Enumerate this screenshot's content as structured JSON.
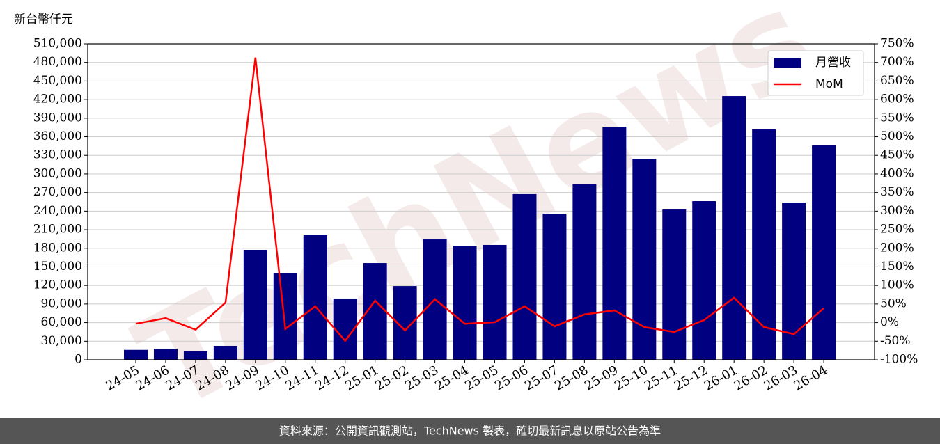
{
  "chart_data": {
    "type": "bar",
    "unit_label": "新台幣仟元",
    "watermark": "TechNews",
    "categories": [
      "24-05",
      "24-06",
      "24-07",
      "24-08",
      "24-09",
      "24-10",
      "24-11",
      "24-12",
      "25-01",
      "25-02",
      "25-03",
      "25-04",
      "25-05",
      "25-06",
      "25-07",
      "25-08",
      "25-09",
      "25-10",
      "25-11",
      "25-12",
      "26-01",
      "26-02",
      "26-03",
      "26-04"
    ],
    "series": [
      {
        "name": "月營收",
        "type": "bar",
        "color": "#000080",
        "values": [
          16000,
          18000,
          13500,
          22500,
          177500,
          140400,
          202200,
          98900,
          156100,
          119000,
          194300,
          184200,
          185400,
          267400,
          235900,
          283100,
          376300,
          324600,
          242600,
          256100,
          425700,
          371800,
          253900,
          346000
        ]
      },
      {
        "name": "MoM",
        "type": "line",
        "axis": "y2",
        "color": "#ff0000",
        "values": [
          -3,
          12,
          -19,
          54,
          713,
          -17,
          44,
          -49,
          59,
          -21,
          63,
          -3,
          1,
          44,
          -10,
          22,
          33,
          -12,
          -25,
          7,
          67,
          -12,
          -31,
          39
        ]
      }
    ],
    "ylim": [
      0,
      510000
    ],
    "yticks": [
      0,
      {
        "value": 30000,
        "label": "30,000"
      },
      {
        "value": 60000,
        "label": "60,000"
      },
      {
        "value": 90000,
        "label": "90,000"
      },
      {
        "value": 120000,
        "label": "120,000"
      },
      {
        "value": 150000,
        "label": "150,000"
      },
      {
        "value": 180000,
        "label": "180,000"
      },
      {
        "value": 210000,
        "label": "210,000"
      },
      {
        "value": 240000,
        "label": "240,000"
      },
      {
        "value": 270000,
        "label": "270,000"
      },
      {
        "value": 300000,
        "label": "300,000"
      },
      {
        "value": 330000,
        "label": "330,000"
      },
      {
        "value": 360000,
        "label": "360,000"
      },
      {
        "value": 390000,
        "label": "390,000"
      },
      {
        "value": 420000,
        "label": "420,000"
      },
      {
        "value": 450000,
        "label": "450,000"
      },
      {
        "value": 480000,
        "label": "480,000"
      },
      {
        "value": 510000,
        "label": "510,000"
      }
    ],
    "y2lim": [
      -100,
      750
    ],
    "y2ticks": [
      {
        "value": -100,
        "label": "-100%"
      },
      {
        "value": -50,
        "label": "-50%"
      },
      {
        "value": 0,
        "label": "0%"
      },
      {
        "value": 50,
        "label": "50%"
      },
      {
        "value": 100,
        "label": "100%"
      },
      {
        "value": 150,
        "label": "150%"
      },
      {
        "value": 200,
        "label": "200%"
      },
      {
        "value": 250,
        "label": "250%"
      },
      {
        "value": 300,
        "label": "300%"
      },
      {
        "value": 350,
        "label": "350%"
      },
      {
        "value": 400,
        "label": "400%"
      },
      {
        "value": 450,
        "label": "450%"
      },
      {
        "value": 500,
        "label": "500%"
      },
      {
        "value": 550,
        "label": "550%"
      },
      {
        "value": 600,
        "label": "600%"
      },
      {
        "value": 650,
        "label": "650%"
      },
      {
        "value": 700,
        "label": "700%"
      },
      {
        "value": 750,
        "label": "750%"
      }
    ],
    "grid": true,
    "legend": "upper right"
  },
  "footer": "資料來源：公開資訊觀測站，TechNews 製表，確切最新訊息以原站公告為準"
}
